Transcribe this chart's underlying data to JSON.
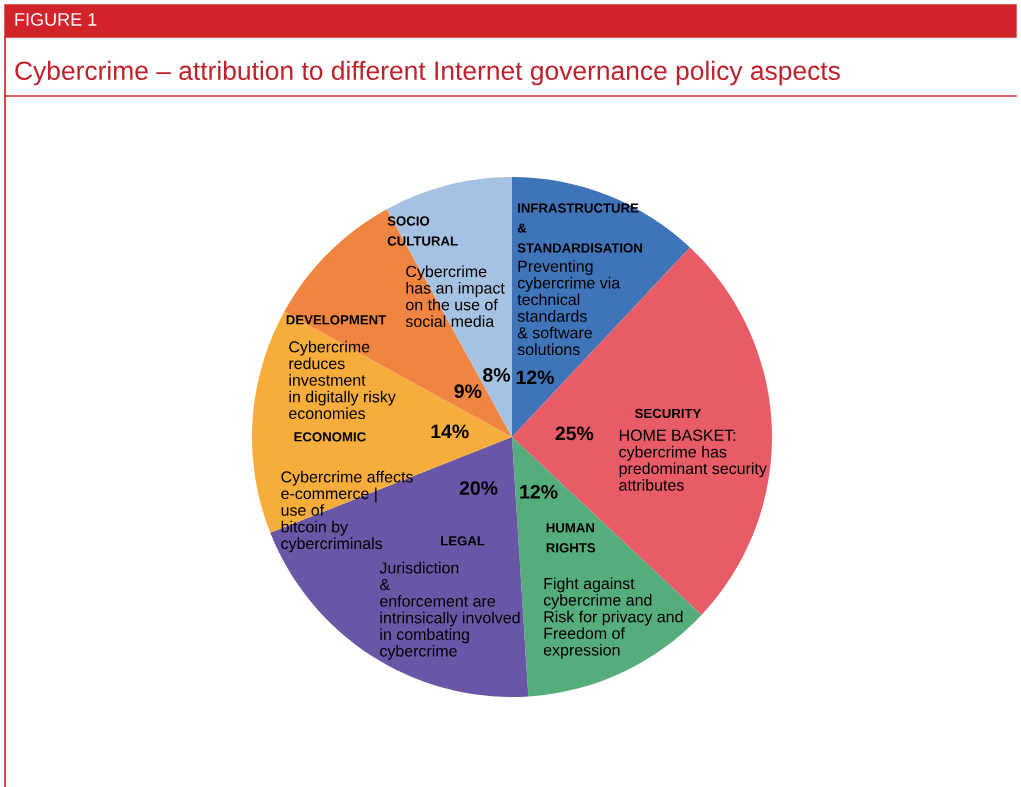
{
  "chart_data": {
    "type": "pie",
    "title": "Cybercrime – attribution to different Internet governance policy aspects",
    "categories": [
      "INFRASTRUCTURE\n&\nSTANDARDISATION",
      "SECURITY",
      "HUMAN\nRIGHTS",
      "LEGAL",
      "ECONOMIC",
      "DEVELOPMENT",
      "SOCIO\nCULTURAL"
    ],
    "values": [
      12,
      25,
      12,
      20,
      14,
      9,
      8
    ],
    "value_labels": [
      "12%",
      "25%",
      "12%",
      "20%",
      "14%",
      "9%",
      "8%"
    ],
    "colors": [
      "#3f74b8",
      "#e85c68",
      "#55ad7c",
      "#6a56a6",
      "#f6ad3c",
      "#ef8540",
      "#a6c2e2"
    ],
    "annotations": [
      "FIGURE 1",
      "Preventing\ncybercrime via\ntechnical\nstandards\n& software\nsolutions",
      "HOME BASKET:\ncybercrime has\npredominant security\nattributes",
      "Fight against\ncybercrime and\nRisk for privacy and\nFreedom of\nexpression",
      "Jurisdiction\n&\nenforcement are\nintrinsically involved\nin combating\ncybercrime",
      "Cybercrime affects\ne-commerce |\nuse of\nbitcoin by\ncybercriminals",
      "Cybercrime\nreduces\ninvestment\nin digitally risky\neconomies",
      "Cybercrime\nhas an impact\non the use of\nsocial media"
    ]
  }
}
